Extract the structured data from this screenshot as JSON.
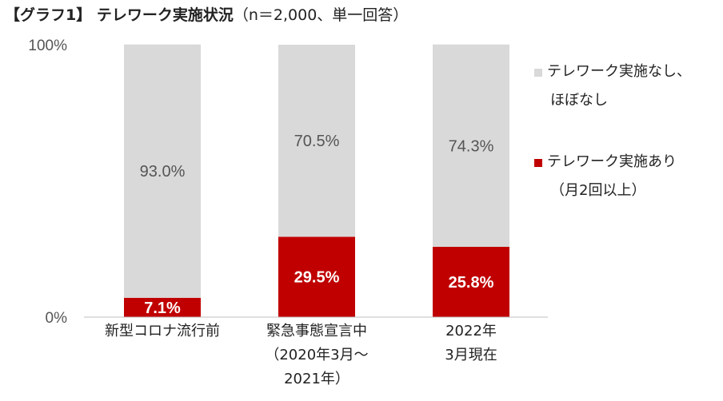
{
  "title": {
    "main": "【グラフ1】 テレワーク実施状況",
    "sub": "（n＝2,000、単一回答）"
  },
  "colors": {
    "no_telework": "#d9d9d9",
    "telework": "#c00000"
  },
  "chart_data": {
    "type": "bar",
    "stacked": true,
    "ylim": [
      0,
      100
    ],
    "yticks": [
      "100%",
      "0%"
    ],
    "grid": false,
    "legend_position": "right",
    "categories": [
      [
        "新型コロナ流行前"
      ],
      [
        "緊急事態宣言中",
        "（2020年3月～",
        "2021年）"
      ],
      [
        "2022年",
        "3月現在"
      ]
    ],
    "series": [
      {
        "name_lines": [
          "テレワーク実施あり",
          "（月2回以上）"
        ],
        "values": [
          7.1,
          29.5,
          25.8
        ],
        "labels": [
          "7.1%",
          "29.5%",
          "25.8%"
        ]
      },
      {
        "name_lines": [
          "テレワーク実施なし、",
          "ほぼなし"
        ],
        "values": [
          93.0,
          70.5,
          74.3
        ],
        "labels": [
          "93.0%",
          "70.5%",
          "74.3%"
        ]
      }
    ],
    "legend_order": [
      1,
      0
    ]
  }
}
